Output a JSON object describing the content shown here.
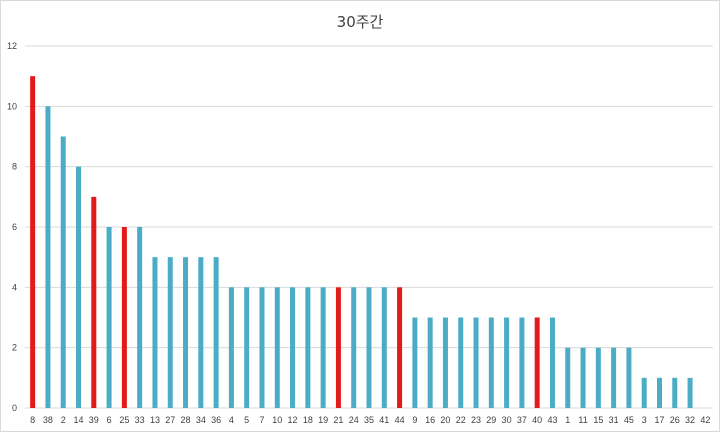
{
  "chart_data": {
    "type": "bar",
    "title": "30주간",
    "xlabel": "",
    "ylabel": "",
    "ylim": [
      0,
      12
    ],
    "yticks": [
      0,
      2,
      4,
      6,
      8,
      10,
      12
    ],
    "grid": true,
    "legend": "none",
    "categories": [
      "8",
      "38",
      "2",
      "14",
      "39",
      "6",
      "25",
      "33",
      "13",
      "27",
      "28",
      "34",
      "36",
      "4",
      "5",
      "7",
      "10",
      "12",
      "18",
      "19",
      "21",
      "24",
      "35",
      "41",
      "44",
      "9",
      "16",
      "20",
      "22",
      "23",
      "29",
      "30",
      "37",
      "40",
      "43",
      "1",
      "11",
      "15",
      "31",
      "45",
      "3",
      "17",
      "26",
      "32",
      "42"
    ],
    "values": [
      11,
      10,
      9,
      8,
      7,
      6,
      6,
      6,
      5,
      5,
      5,
      5,
      5,
      4,
      4,
      4,
      4,
      4,
      4,
      4,
      4,
      4,
      4,
      4,
      4,
      3,
      3,
      3,
      3,
      3,
      3,
      3,
      3,
      3,
      3,
      2,
      2,
      2,
      2,
      2,
      1,
      1,
      1,
      1,
      0
    ],
    "highlighted_categories": [
      "8",
      "39",
      "25",
      "21",
      "44",
      "40"
    ],
    "colors": {
      "default": "#4bacc6",
      "highlight": "#e31a1c",
      "grid": "#d9d9d9",
      "text": "#404040"
    }
  }
}
